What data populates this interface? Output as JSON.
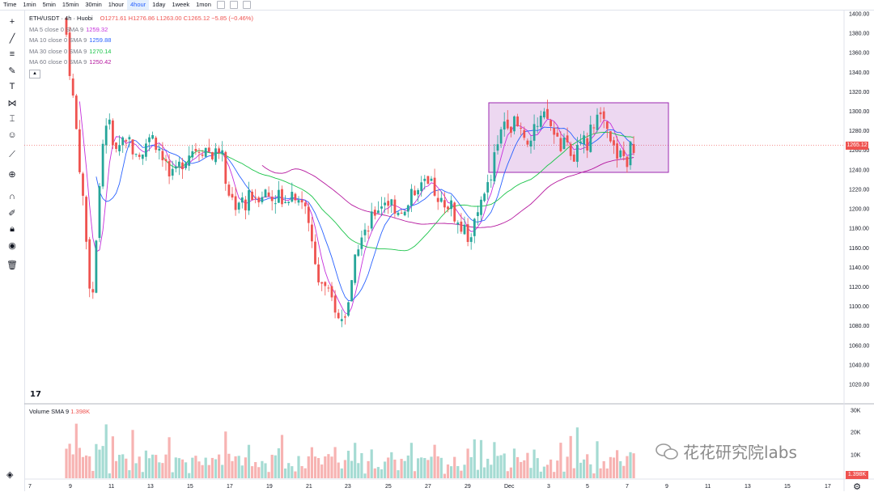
{
  "toolbar": {
    "timeframes": [
      "Time",
      "1min",
      "5min",
      "15min",
      "30min",
      "1hour",
      "4hour",
      "1day",
      "1week",
      "1mon"
    ],
    "active_index": 6
  },
  "legend": {
    "symbol": "ETH/USDT · 4h · Huobi",
    "ohlc": "O1271.61  H1276.86  L1263.00  C1265.12  −5.85 (−0.46%)",
    "ma": [
      {
        "label": "MA 5 close 0 SMA 9",
        "value": "1259.32",
        "color": "#c52fdb"
      },
      {
        "label": "MA 10 close 0 SMA 9",
        "value": "1259.88",
        "color": "#2962ff"
      },
      {
        "label": "MA 30 close 0 SMA 9",
        "value": "1270.14",
        "color": "#1bc44a"
      },
      {
        "label": "MA 60 close 0 SMA 9",
        "value": "1250.42",
        "color": "#b5179e"
      }
    ]
  },
  "price_axis": [
    "1400.00",
    "1380.00",
    "1360.00",
    "1340.00",
    "1320.00",
    "1300.00",
    "1280.00",
    "1260.00",
    "1240.00",
    "1220.00",
    "1200.00",
    "1180.00",
    "1160.00",
    "1140.00",
    "1120.00",
    "1100.00",
    "1080.00",
    "1060.00",
    "1040.00",
    "1020.00"
  ],
  "current_price": "1265.12",
  "volume": {
    "title": "Volume SMA 9",
    "value": "1.398K",
    "axis": [
      "30K",
      "20K",
      "10K"
    ],
    "current": "1.398K"
  },
  "time_axis": [
    "7",
    "9",
    "11",
    "13",
    "15",
    "17",
    "19",
    "21",
    "23",
    "25",
    "27",
    "29",
    "Dec",
    "3",
    "5",
    "7",
    "9",
    "11",
    "13",
    "15",
    "17"
  ],
  "watermark": "花花研究院labs",
  "colors": {
    "up": "#26a69a",
    "down": "#ef5350",
    "up_vol": "#a5dbd3",
    "down_vol": "#f7b3b2",
    "box": "#9c27b0"
  }
}
